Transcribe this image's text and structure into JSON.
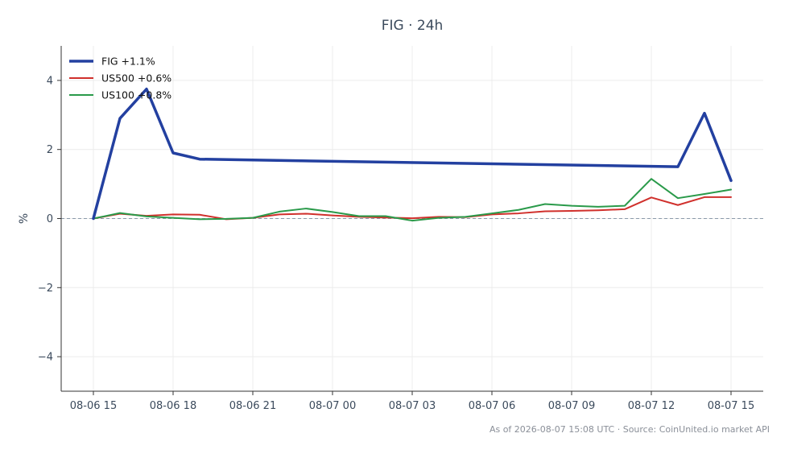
{
  "chart_data": {
    "type": "line",
    "title": "FIG · 24h",
    "xlabel": "",
    "ylabel": "%",
    "ylim": [
      -5,
      5
    ],
    "x_ticks": [
      "08-06 15",
      "08-06 18",
      "08-06 21",
      "08-07 00",
      "08-07 03",
      "08-07 06",
      "08-07 09",
      "08-07 12",
      "08-07 15"
    ],
    "y_ticks": [
      -4,
      -2,
      0,
      2,
      4
    ],
    "y_tick_labels": [
      "−4",
      "−2",
      "0",
      "2",
      "4"
    ],
    "grid": true,
    "legend_position": "top-left",
    "zero_line": true,
    "x": [
      "08-06 15:00",
      "08-06 16:00",
      "08-06 17:00",
      "08-06 18:00",
      "08-06 19:00",
      "08-06 20:00",
      "08-06 21:00",
      "08-06 22:00",
      "08-06 23:00",
      "08-07 00:00",
      "08-07 01:00",
      "08-07 02:00",
      "08-07 03:00",
      "08-07 04:00",
      "08-07 05:00",
      "08-07 06:00",
      "08-07 07:00",
      "08-07 08:00",
      "08-07 09:00",
      "08-07 10:00",
      "08-07 11:00",
      "08-07 12:00",
      "08-07 13:00",
      "08-07 14:00",
      "08-07 15:00"
    ],
    "series": [
      {
        "name": "FIG +1.1%",
        "color": "#2340a0",
        "width": 3.5,
        "x": [
          "08-06 15:00",
          "08-06 16:00",
          "08-06 17:00",
          "08-06 18:00",
          "08-06 19:00",
          "08-07 13:00",
          "08-07 14:00",
          "08-07 15:00"
        ],
        "values": [
          0.0,
          2.9,
          3.75,
          1.9,
          1.72,
          1.5,
          3.05,
          1.1
        ]
      },
      {
        "name": "US500 +0.6%",
        "color": "#d0302c",
        "width": 2,
        "values": [
          0.0,
          0.14,
          0.08,
          0.12,
          0.11,
          -0.02,
          0.02,
          0.12,
          0.14,
          0.09,
          0.05,
          0.03,
          0.01,
          0.05,
          0.04,
          0.12,
          0.15,
          0.21,
          0.22,
          0.24,
          0.27,
          0.61,
          0.39,
          0.62,
          0.62
        ]
      },
      {
        "name": "US100 +0.8%",
        "color": "#2a9a4a",
        "width": 2,
        "values": [
          0.0,
          0.16,
          0.06,
          0.02,
          -0.02,
          -0.01,
          0.02,
          0.2,
          0.29,
          0.19,
          0.07,
          0.07,
          -0.06,
          0.02,
          0.05,
          0.15,
          0.25,
          0.42,
          0.37,
          0.34,
          0.37,
          1.15,
          0.59,
          0.71,
          0.84
        ]
      }
    ]
  },
  "footer": "As of 2026-08-07 15:08 UTC · Source: CoinUnited.io market API"
}
